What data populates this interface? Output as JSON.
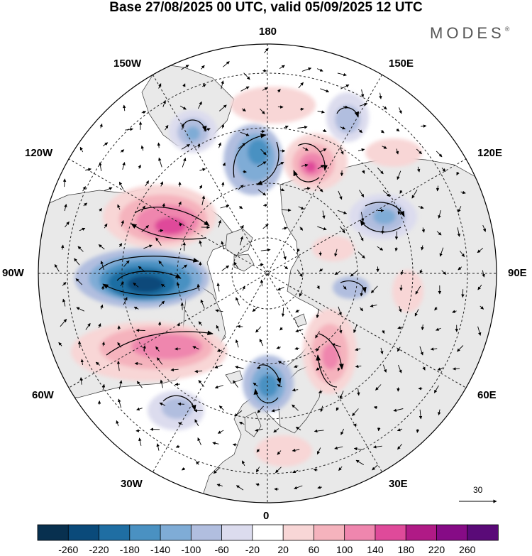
{
  "title": "Base 27/08/2025 00 UTC, valid 05/09/2025 12 UTC",
  "brand": {
    "name": "MODES",
    "mark": "®"
  },
  "longitude_labels": {
    "top": "180",
    "bottom": "0",
    "left": "90W",
    "right": "90E",
    "upper_left_1": "150W",
    "upper_left_2": "120W",
    "upper_right_1": "150E",
    "upper_right_2": "120E",
    "lower_left_1": "60W",
    "lower_left_2": "30W",
    "lower_right_1": "60E",
    "lower_right_2": "30E"
  },
  "reference_vector": {
    "value": "30"
  },
  "colorbar": {
    "ticks": [
      "-260",
      "-220",
      "-180",
      "-140",
      "-100",
      "-60",
      "-20",
      "20",
      "60",
      "100",
      "140",
      "180",
      "220",
      "260"
    ],
    "colors": [
      "#08304f",
      "#0a4a7a",
      "#1f6ea3",
      "#4a91c2",
      "#7facd6",
      "#b1bedf",
      "#dcdcee",
      "#ffffff",
      "#f8d6d6",
      "#f5b3bd",
      "#ef86ae",
      "#df4a9a",
      "#b01a86",
      "#860b86",
      "#5a0a78"
    ]
  },
  "colors": {
    "land": "#e9e9e9",
    "ocean": "#ffffff",
    "coast": "#333333",
    "grid": "#222222"
  },
  "anomaly_centers": [
    {
      "sign": "neg",
      "level": 6,
      "label": "west of Hudson Bay (low)"
    },
    {
      "sign": "neg",
      "level": 4,
      "label": "Beaufort / Chukchi low"
    },
    {
      "sign": "neg",
      "level": 4,
      "label": "North Sea low"
    },
    {
      "sign": "neg",
      "level": 3,
      "label": "Central Siberia low"
    },
    {
      "sign": "neg",
      "level": 3,
      "label": "Gulf of Alaska low"
    },
    {
      "sign": "neg",
      "level": 2,
      "label": "Bering low"
    },
    {
      "sign": "neg",
      "level": 2,
      "label": "Mid-Atlantic low"
    },
    {
      "sign": "pos",
      "level": 4,
      "label": "Western Canada high"
    },
    {
      "sign": "pos",
      "level": 4,
      "label": "East Siberia high"
    },
    {
      "sign": "pos",
      "level": 3,
      "label": "NW Atlantic high"
    },
    {
      "sign": "pos",
      "level": 3,
      "label": "Western Russia high"
    }
  ]
}
